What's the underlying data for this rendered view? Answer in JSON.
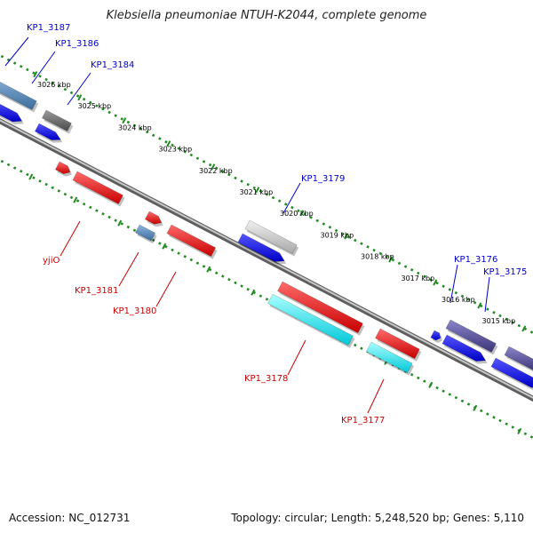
{
  "title": "Klebsiella pneumoniae NTUH-K2044, complete genome",
  "footer": {
    "accession": "Accession: NC_012731",
    "summary": "Topology: circular; Length: 5,248,520 bp; Genes: 5,110"
  },
  "colors": {
    "forward_label": "#0000cc",
    "reverse_label": "#cc0000",
    "backbone": "#8c8c8c",
    "tick": "#228b22"
  },
  "kbp_labels": [
    "3026 kbp",
    "3025 kbp",
    "3024 kbp",
    "3023 kbp",
    "3022 kbp",
    "3021 kbp",
    "3020 kbp",
    "3019 kbp",
    "3018 kbp",
    "3017 kbp",
    "3016 kbp",
    "3015 kbp"
  ],
  "gene_labels": {
    "KP1_3187": "KP1_3187",
    "KP1_3186": "KP1_3186",
    "KP1_3184": "KP1_3184",
    "KP1_3179": "KP1_3179",
    "KP1_3176": "KP1_3176",
    "KP1_3175": "KP1_3175",
    "yjiO": "yjiO",
    "KP1_3181": "KP1_3181",
    "KP1_3180": "KP1_3180",
    "KP1_3178": "KP1_3178",
    "KP1_3177": "KP1_3177"
  }
}
